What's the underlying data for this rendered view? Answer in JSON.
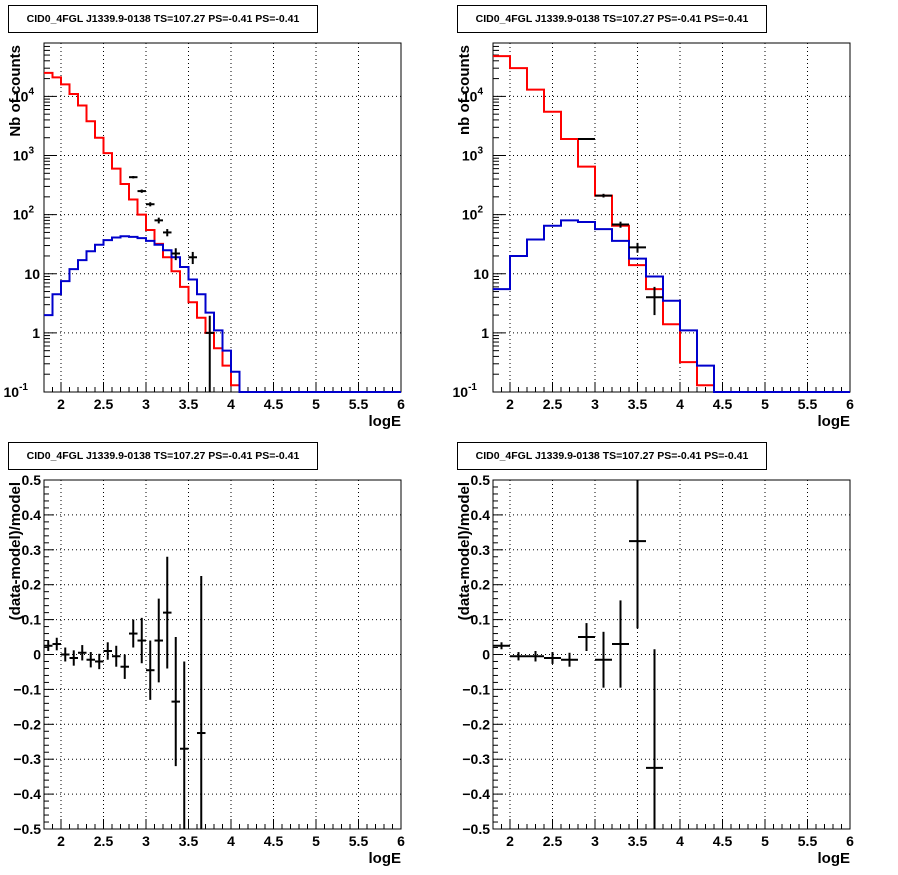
{
  "chart_data": [
    {
      "type": "line",
      "title": "CID0_4FGL J1339.9-0138 TS=107.27 PS=-0.41 PS=-0.41",
      "xlabel": "logE",
      "ylabel": "Nb of counts",
      "xlim": [
        1.8,
        6.0
      ],
      "ylim": [
        0.1,
        80000
      ],
      "yscale": "log",
      "grid": true,
      "xticks": [
        "2",
        "2.5",
        "3",
        "3.5",
        "4",
        "4.5",
        "5",
        "5.5",
        "6"
      ],
      "yticks": [
        "10^{-1}",
        "1",
        "10",
        "10^{2}",
        "10^{3}",
        "10^{4}"
      ],
      "x_edges": [
        1.8,
        1.9,
        2.0,
        2.1,
        2.2,
        2.3,
        2.4,
        2.5,
        2.6,
        2.7,
        2.8,
        2.9,
        3.0,
        3.1,
        3.2,
        3.3,
        3.4,
        3.5,
        3.6,
        3.7,
        3.8,
        3.9,
        4.0,
        4.1,
        4.2,
        4.3,
        4.4,
        4.5,
        4.6,
        4.7,
        4.8,
        4.9,
        5.0,
        5.1,
        5.2,
        5.3,
        5.4,
        5.5,
        5.6,
        5.7,
        5.8,
        5.9,
        6.0
      ],
      "series": [
        {
          "role": "model-total",
          "color": "#ff0000",
          "values": [
            25000,
            21000,
            16000,
            11000,
            7000,
            3800,
            2000,
            1100,
            600,
            330,
            180,
            100,
            55,
            32,
            19,
            11,
            6,
            3.3,
            1.8,
            1.0,
            0.55,
            0.28,
            0.13,
            0.1,
            0.1,
            0.1,
            0.1,
            0.1,
            0.1,
            0.1,
            0.1,
            0.1,
            0.1,
            0.1,
            0.1,
            0.1,
            0.1,
            0.1,
            0.1,
            0.1,
            0.1,
            0.1
          ]
        },
        {
          "role": "model-source",
          "color": "#0000cc",
          "values": [
            2,
            4.5,
            7.5,
            12,
            17,
            24,
            31,
            37,
            41,
            43,
            42,
            40,
            36,
            31,
            25,
            19,
            13,
            8,
            4.5,
            2.2,
            1.1,
            0.5,
            0.22,
            0.1,
            0.1,
            0.1,
            0.1,
            0.1,
            0.1,
            0.1,
            0.1,
            0.1,
            0.1,
            0.1,
            0.1,
            0.1,
            0.1,
            0.1,
            0.1,
            0.1,
            0.1,
            0.1
          ]
        },
        {
          "role": "data",
          "color": "#000000",
          "points": [
            {
              "x": 2.85,
              "y": 430,
              "err": 20
            },
            {
              "x": 2.95,
              "y": 250,
              "err": 16
            },
            {
              "x": 3.05,
              "y": 150,
              "err": 12
            },
            {
              "x": 3.15,
              "y": 80,
              "err": 9
            },
            {
              "x": 3.25,
              "y": 50,
              "err": 7
            },
            {
              "x": 3.35,
              "y": 22,
              "err": 5
            },
            {
              "x": 3.55,
              "y": 19,
              "err": 4.4
            },
            {
              "x": 3.75,
              "y": 1.0,
              "err": 0.95
            }
          ]
        }
      ]
    },
    {
      "type": "line",
      "title": "CID0_4FGL J1339.9-0138 TS=107.27 PS=-0.41 PS=-0.41",
      "xlabel": "logE",
      "ylabel": "nb of counts",
      "xlim": [
        1.8,
        6.0
      ],
      "ylim": [
        0.1,
        80000
      ],
      "yscale": "log",
      "grid": true,
      "xticks": [
        "2",
        "2.5",
        "3",
        "3.5",
        "4",
        "4.5",
        "5",
        "5.5",
        "6"
      ],
      "yticks": [
        "10^{-1}",
        "1",
        "10",
        "10^{2}",
        "10^{3}",
        "10^{4}"
      ],
      "x_edges": [
        1.8,
        2.0,
        2.2,
        2.4,
        2.6,
        2.8,
        3.0,
        3.2,
        3.4,
        3.6,
        3.8,
        4.0,
        4.2,
        4.4,
        4.6,
        4.8,
        5.0,
        5.2,
        5.4,
        5.6,
        5.8,
        6.0
      ],
      "series": [
        {
          "role": "model-total",
          "color": "#ff0000",
          "values": [
            48000,
            30000,
            13000,
            5500,
            1900,
            650,
            210,
            65,
            14,
            5.5,
            1.4,
            0.32,
            0.13,
            0.1,
            0.1,
            0.1,
            0.1,
            0.1,
            0.1,
            0.1,
            0.1
          ]
        },
        {
          "role": "model-source",
          "color": "#0000cc",
          "values": [
            5.5,
            20,
            38,
            65,
            80,
            75,
            57,
            36,
            18,
            9,
            3.5,
            1.1,
            0.28,
            0.1,
            0.1,
            0.1,
            0.1,
            0.1,
            0.1,
            0.1,
            0.1
          ]
        },
        {
          "role": "data",
          "color": "#000000",
          "points": [
            {
              "x": 2.9,
              "y": 1900,
              "err": 45
            },
            {
              "x": 3.1,
              "y": 210,
              "err": 15
            },
            {
              "x": 3.3,
              "y": 68,
              "err": 8
            },
            {
              "x": 3.5,
              "y": 28,
              "err": 5.3
            },
            {
              "x": 3.7,
              "y": 4,
              "err": 2
            }
          ]
        }
      ]
    },
    {
      "type": "scatter",
      "title": "CID0_4FGL J1339.9-0138 TS=107.27 PS=-0.41 PS=-0.41",
      "xlabel": "logE",
      "ylabel": "(data-model)/model",
      "xlim": [
        1.8,
        6.0
      ],
      "ylim": [
        -0.5,
        0.5
      ],
      "grid": true,
      "xticks": [
        "2",
        "2.5",
        "3",
        "3.5",
        "4",
        "4.5",
        "5",
        "5.5",
        "6"
      ],
      "yticks": [
        "−0.5",
        "−0.4",
        "−0.3",
        "−0.2",
        "−0.1",
        "0",
        "0.1",
        "0.2",
        "0.3",
        "0.4",
        "0.5"
      ],
      "series": [
        {
          "role": "residual",
          "color": "#000000",
          "xhalf": 0.05,
          "points": [
            {
              "x": 1.85,
              "y": 0.025,
              "err": 0.015
            },
            {
              "x": 1.95,
              "y": 0.03,
              "err": 0.018
            },
            {
              "x": 2.05,
              "y": 0.0,
              "err": 0.02
            },
            {
              "x": 2.15,
              "y": -0.01,
              "err": 0.022
            },
            {
              "x": 2.25,
              "y": 0.005,
              "err": 0.022
            },
            {
              "x": 2.35,
              "y": -0.015,
              "err": 0.022
            },
            {
              "x": 2.45,
              "y": -0.02,
              "err": 0.022
            },
            {
              "x": 2.55,
              "y": 0.01,
              "err": 0.025
            },
            {
              "x": 2.65,
              "y": -0.005,
              "err": 0.03
            },
            {
              "x": 2.75,
              "y": -0.035,
              "err": 0.035
            },
            {
              "x": 2.85,
              "y": 0.06,
              "err": 0.04
            },
            {
              "x": 2.95,
              "y": 0.04,
              "err": 0.065
            },
            {
              "x": 3.05,
              "y": -0.045,
              "err": 0.085
            },
            {
              "x": 3.15,
              "y": 0.04,
              "err": 0.12
            },
            {
              "x": 3.25,
              "y": 0.12,
              "err": 0.16
            },
            {
              "x": 3.35,
              "y": -0.135,
              "err": 0.185
            },
            {
              "x": 3.45,
              "y": -0.27,
              "err": 0.25
            },
            {
              "x": 3.65,
              "y": -0.225,
              "err": 0.45
            }
          ]
        }
      ]
    },
    {
      "type": "scatter",
      "title": "CID0_4FGL J1339.9-0138 TS=107.27 PS=-0.41 PS=-0.41",
      "xlabel": "logE",
      "ylabel": "(data-model)/model",
      "xlim": [
        1.8,
        6.0
      ],
      "ylim": [
        -0.5,
        0.5
      ],
      "grid": true,
      "xticks": [
        "2",
        "2.5",
        "3",
        "3.5",
        "4",
        "4.5",
        "5",
        "5.5",
        "6"
      ],
      "yticks": [
        "−0.5",
        "−0.4",
        "−0.3",
        "−0.2",
        "−0.1",
        "0",
        "0.1",
        "0.2",
        "0.3",
        "0.4",
        "0.5"
      ],
      "series": [
        {
          "role": "residual",
          "color": "#000000",
          "xhalf": 0.1,
          "points": [
            {
              "x": 1.9,
              "y": 0.025,
              "err": 0.01
            },
            {
              "x": 2.1,
              "y": -0.005,
              "err": 0.012
            },
            {
              "x": 2.3,
              "y": -0.005,
              "err": 0.015
            },
            {
              "x": 2.5,
              "y": -0.01,
              "err": 0.017
            },
            {
              "x": 2.7,
              "y": -0.015,
              "err": 0.02
            },
            {
              "x": 2.9,
              "y": 0.05,
              "err": 0.04
            },
            {
              "x": 3.1,
              "y": -0.015,
              "err": 0.08
            },
            {
              "x": 3.3,
              "y": 0.03,
              "err": 0.125
            },
            {
              "x": 3.5,
              "y": 0.325,
              "err": 0.25
            },
            {
              "x": 3.7,
              "y": -0.325,
              "err": 0.34
            }
          ]
        }
      ]
    }
  ]
}
